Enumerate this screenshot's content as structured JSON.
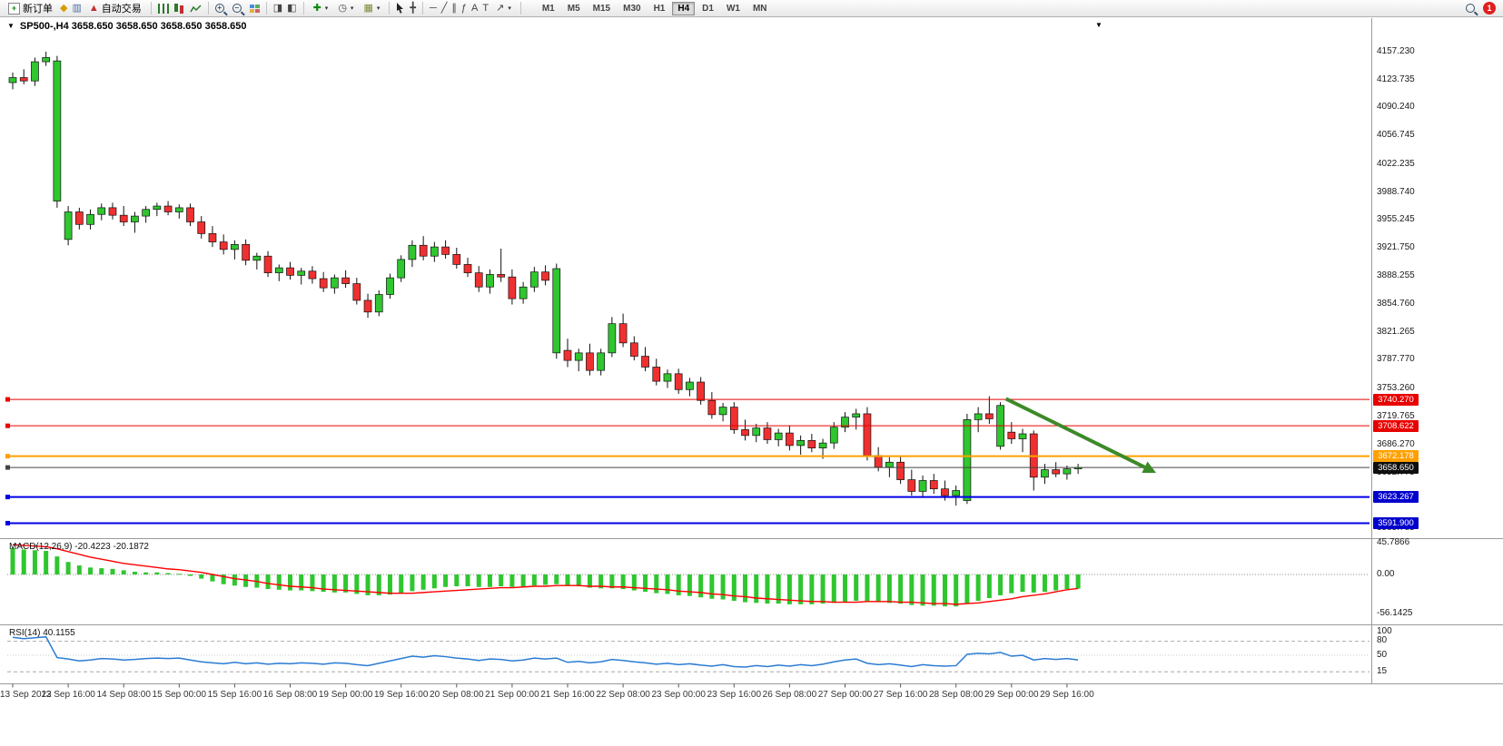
{
  "toolbar": {
    "new_order_label": "新订单",
    "auto_trading_label": "自动交易",
    "timeframes": [
      "M1",
      "M5",
      "M15",
      "M30",
      "H1",
      "H4",
      "D1",
      "W1",
      "MN"
    ],
    "active_timeframe": "H4",
    "notification_count": "1"
  },
  "icons": {
    "window_menu": "▼",
    "shift_marker": "▼",
    "metaeditor": "◆",
    "market_watch": "▥",
    "algo_hat": "▲",
    "auto_scroll": "◨",
    "chart_shift": "◧",
    "indicators_plus": "✚",
    "periods_clock": "◷",
    "templates": "▦",
    "crosshair": "╋",
    "horizontal_line": "─",
    "trendline": "╱",
    "channel": "∥",
    "fibonacci": "ƒ",
    "text_tool": "A",
    "label_tool": "T",
    "arrows_tool": "↗",
    "caret": "▾"
  },
  "chart_header": {
    "symbol_title": "SP500-,H4 3658.650 3658.650 3658.650 3658.650"
  },
  "indicators": {
    "macd_label": "MACD(12,26,9) -20.4223 -20.1872",
    "rsi_label": "RSI(14) 40.1155"
  },
  "price_axis": {
    "labels": [
      "4157.230",
      "4123.735",
      "4090.240",
      "4056.745",
      "4022.235",
      "3988.740",
      "3955.245",
      "3921.750",
      "3888.255",
      "3854.760",
      "3821.265",
      "3787.770",
      "3753.260",
      "3719.765",
      "3686.270",
      "3652.775",
      "3619.280",
      "3585.785"
    ]
  },
  "macd_axis": {
    "labels": [
      "45.7866",
      "0.00",
      "-56.1425"
    ]
  },
  "rsi_axis": {
    "labels": [
      "100",
      "80",
      "50",
      "15"
    ]
  },
  "time_axis": {
    "labels": [
      "13 Sep 2022",
      "13 Sep 16:00",
      "14 Sep 08:00",
      "15 Sep 00:00",
      "15 Sep 16:00",
      "16 Sep 08:00",
      "19 Sep 00:00",
      "19 Sep 16:00",
      "20 Sep 08:00",
      "21 Sep 00:00",
      "21 Sep 16:00",
      "22 Sep 08:00",
      "23 Sep 00:00",
      "23 Sep 16:00",
      "26 Sep 08:00",
      "27 Sep 00:00",
      "27 Sep 16:00",
      "28 Sep 08:00",
      "29 Sep 00:00",
      "29 Sep 16:00"
    ]
  },
  "levels": [
    {
      "value": 3740.27,
      "label": "3740.270",
      "line_color": "#e80000",
      "tag_color": "#e80000",
      "width": 1
    },
    {
      "value": 3708.622,
      "label": "3708.622",
      "line_color": "#e80000",
      "tag_color": "#e80000",
      "width": 1
    },
    {
      "value": 3672.178,
      "label": "3672.178",
      "line_color": "#ffa000",
      "tag_color": "#ffa000",
      "width": 2
    },
    {
      "value": 3658.65,
      "label": "3658.650",
      "line_color": "#444444",
      "tag_color": "#101010",
      "width": 1
    },
    {
      "value": 3623.267,
      "label": "3623.267",
      "line_color": "#0000e8",
      "tag_color": "#0000cd",
      "width": 2
    },
    {
      "value": 3591.9,
      "label": "3591.900",
      "line_color": "#0000e8",
      "tag_color": "#0000cd",
      "width": 2
    }
  ],
  "colors": {
    "bull": "#2fc62f",
    "bear": "#f03030",
    "wick": "#111111",
    "macd_hist": "#2fc62f",
    "macd_signal": "#ff0000",
    "rsi_line": "#2b7cd4",
    "arrow": "#3c8a28"
  },
  "chart_data": {
    "type": "candlestick",
    "symbol": "SP500-",
    "timeframe": "H4",
    "title": "SP500-,H4",
    "last_price": 3658.65,
    "price_range": {
      "top": 4175.5,
      "bottom": 3575.0
    },
    "candles": [
      [
        4120,
        4132,
        4112,
        4126
      ],
      [
        4126,
        4136,
        4118,
        4122
      ],
      [
        4122,
        4150,
        4116,
        4145
      ],
      [
        4145,
        4157,
        4140,
        4150
      ],
      [
        3978,
        4152,
        3970,
        4146
      ],
      [
        3932,
        3972,
        3925,
        3965
      ],
      [
        3965,
        3970,
        3944,
        3950
      ],
      [
        3950,
        3968,
        3944,
        3962
      ],
      [
        3962,
        3975,
        3955,
        3970
      ],
      [
        3970,
        3976,
        3956,
        3961
      ],
      [
        3961,
        3972,
        3948,
        3953
      ],
      [
        3953,
        3965,
        3940,
        3960
      ],
      [
        3960,
        3972,
        3952,
        3968
      ],
      [
        3968,
        3976,
        3960,
        3972
      ],
      [
        3972,
        3978,
        3961,
        3965
      ],
      [
        3965,
        3974,
        3957,
        3970
      ],
      [
        3970,
        3975,
        3948,
        3953
      ],
      [
        3953,
        3960,
        3933,
        3939
      ],
      [
        3939,
        3948,
        3923,
        3929
      ],
      [
        3929,
        3938,
        3914,
        3920
      ],
      [
        3920,
        3931,
        3908,
        3926
      ],
      [
        3926,
        3932,
        3901,
        3907
      ],
      [
        3907,
        3916,
        3896,
        3912
      ],
      [
        3912,
        3918,
        3887,
        3892
      ],
      [
        3892,
        3902,
        3882,
        3898
      ],
      [
        3898,
        3905,
        3884,
        3889
      ],
      [
        3889,
        3898,
        3878,
        3894
      ],
      [
        3894,
        3900,
        3879,
        3885
      ],
      [
        3885,
        3893,
        3869,
        3874
      ],
      [
        3874,
        3890,
        3867,
        3886
      ],
      [
        3886,
        3895,
        3874,
        3879
      ],
      [
        3879,
        3886,
        3854,
        3859
      ],
      [
        3859,
        3867,
        3838,
        3845
      ],
      [
        3845,
        3871,
        3840,
        3866
      ],
      [
        3866,
        3891,
        3861,
        3886
      ],
      [
        3886,
        3913,
        3881,
        3908
      ],
      [
        3908,
        3931,
        3899,
        3925
      ],
      [
        3925,
        3936,
        3907,
        3912
      ],
      [
        3912,
        3929,
        3905,
        3923
      ],
      [
        3923,
        3931,
        3909,
        3914
      ],
      [
        3914,
        3922,
        3897,
        3902
      ],
      [
        3902,
        3910,
        3887,
        3892
      ],
      [
        3892,
        3900,
        3869,
        3875
      ],
      [
        3875,
        3896,
        3867,
        3890
      ],
      [
        3890,
        3921,
        3881,
        3887
      ],
      [
        3887,
        3896,
        3854,
        3861
      ],
      [
        3861,
        3881,
        3855,
        3875
      ],
      [
        3875,
        3899,
        3869,
        3893
      ],
      [
        3893,
        3901,
        3877,
        3883
      ],
      [
        3796,
        3903,
        3789,
        3897
      ],
      [
        3799,
        3813,
        3779,
        3787
      ],
      [
        3787,
        3801,
        3774,
        3796
      ],
      [
        3796,
        3807,
        3769,
        3775
      ],
      [
        3775,
        3801,
        3769,
        3796
      ],
      [
        3796,
        3839,
        3791,
        3831
      ],
      [
        3831,
        3843,
        3803,
        3808
      ],
      [
        3808,
        3816,
        3787,
        3792
      ],
      [
        3792,
        3803,
        3774,
        3779
      ],
      [
        3779,
        3789,
        3757,
        3762
      ],
      [
        3762,
        3776,
        3754,
        3771
      ],
      [
        3771,
        3777,
        3747,
        3752
      ],
      [
        3752,
        3766,
        3744,
        3761
      ],
      [
        3761,
        3767,
        3734,
        3739
      ],
      [
        3739,
        3749,
        3717,
        3722
      ],
      [
        3722,
        3736,
        3714,
        3731
      ],
      [
        3731,
        3737,
        3699,
        3704
      ],
      [
        3704,
        3716,
        3691,
        3697
      ],
      [
        3697,
        3711,
        3689,
        3706
      ],
      [
        3706,
        3713,
        3687,
        3692
      ],
      [
        3692,
        3705,
        3684,
        3700
      ],
      [
        3700,
        3709,
        3679,
        3685
      ],
      [
        3685,
        3697,
        3674,
        3691
      ],
      [
        3691,
        3699,
        3677,
        3682
      ],
      [
        3682,
        3693,
        3669,
        3688
      ],
      [
        3688,
        3713,
        3681,
        3707
      ],
      [
        3707,
        3725,
        3701,
        3719
      ],
      [
        3719,
        3729,
        3704,
        3723
      ],
      [
        3723,
        3731,
        3667,
        3673
      ],
      [
        3673,
        3683,
        3654,
        3659
      ],
      [
        3659,
        3671,
        3647,
        3665
      ],
      [
        3665,
        3673,
        3639,
        3644
      ],
      [
        3644,
        3656,
        3625,
        3630
      ],
      [
        3630,
        3649,
        3623,
        3643
      ],
      [
        3643,
        3651,
        3627,
        3633
      ],
      [
        3633,
        3643,
        3619,
        3625
      ],
      [
        3625,
        3637,
        3613,
        3631
      ],
      [
        3619,
        3723,
        3615,
        3716
      ],
      [
        3716,
        3731,
        3701,
        3723
      ],
      [
        3723,
        3744,
        3711,
        3717
      ],
      [
        3684,
        3737,
        3680,
        3733
      ],
      [
        3701,
        3713,
        3687,
        3693
      ],
      [
        3693,
        3705,
        3677,
        3699
      ],
      [
        3699,
        3703,
        3631,
        3647
      ],
      [
        3647,
        3663,
        3639,
        3656
      ],
      [
        3656,
        3665,
        3647,
        3651
      ],
      [
        3651,
        3661,
        3644,
        3657
      ],
      [
        3657,
        3663,
        3651,
        3658.65
      ]
    ],
    "macd": {
      "params": "12,26,9",
      "last_main": -20.4223,
      "last_signal": -20.1872,
      "range": {
        "top": 45.7866,
        "zero": 0,
        "bottom": -56.1425
      },
      "histogram": [
        38,
        36,
        35,
        34,
        26,
        18,
        13,
        10,
        9,
        8,
        6,
        4,
        3,
        3,
        2,
        1,
        -2,
        -6,
        -10,
        -14,
        -16,
        -18,
        -19,
        -21,
        -22,
        -23,
        -23,
        -24,
        -25,
        -26,
        -26,
        -28,
        -30,
        -30,
        -29,
        -27,
        -24,
        -22,
        -20,
        -18,
        -17,
        -17,
        -18,
        -18,
        -17,
        -18,
        -17,
        -16,
        -15,
        -14,
        -16,
        -17,
        -19,
        -20,
        -20,
        -21,
        -23,
        -25,
        -27,
        -28,
        -30,
        -31,
        -33,
        -35,
        -36,
        -38,
        -40,
        -41,
        -42,
        -42,
        -43,
        -43,
        -43,
        -42,
        -41,
        -40,
        -38,
        -39,
        -40,
        -41,
        -42,
        -44,
        -45,
        -45,
        -46,
        -46,
        -42,
        -38,
        -34,
        -30,
        -27,
        -25,
        -26,
        -25,
        -23,
        -21,
        -20.42
      ],
      "signal": [
        43,
        42,
        41,
        40,
        37,
        33,
        29,
        25,
        22,
        19,
        16,
        14,
        12,
        10,
        8,
        7,
        5,
        3,
        0,
        -3,
        -6,
        -8,
        -10,
        -13,
        -15,
        -17,
        -18,
        -19,
        -21,
        -22,
        -23,
        -24,
        -25,
        -26,
        -27,
        -27,
        -27,
        -26,
        -25,
        -24,
        -23,
        -22,
        -21,
        -20,
        -19,
        -19,
        -18,
        -17,
        -17,
        -16,
        -16,
        -16,
        -17,
        -17,
        -18,
        -18,
        -19,
        -20,
        -21,
        -22,
        -24,
        -25,
        -26,
        -28,
        -29,
        -31,
        -32,
        -34,
        -35,
        -36,
        -37,
        -38,
        -39,
        -39,
        -40,
        -40,
        -40,
        -39,
        -39,
        -39,
        -40,
        -40,
        -41,
        -42,
        -42,
        -43,
        -42,
        -41,
        -39,
        -37,
        -35,
        -32,
        -30,
        -28,
        -25,
        -22,
        -20.19
      ]
    },
    "rsi": {
      "period": 14,
      "last": 40.1155,
      "levels": [
        80,
        50,
        15
      ],
      "values": [
        88,
        85,
        87,
        89,
        45,
        42,
        38,
        40,
        43,
        42,
        40,
        41,
        43,
        44,
        43,
        44,
        40,
        36,
        34,
        32,
        35,
        32,
        34,
        31,
        33,
        32,
        34,
        33,
        31,
        34,
        33,
        30,
        28,
        33,
        38,
        43,
        48,
        46,
        49,
        47,
        44,
        42,
        39,
        42,
        41,
        38,
        40,
        44,
        42,
        44,
        35,
        37,
        34,
        36,
        41,
        39,
        36,
        34,
        31,
        33,
        30,
        32,
        29,
        27,
        30,
        26,
        25,
        28,
        26,
        29,
        27,
        30,
        28,
        31,
        36,
        40,
        42,
        33,
        30,
        32,
        29,
        26,
        30,
        28,
        27,
        28,
        52,
        54,
        53,
        56,
        48,
        50,
        40,
        43,
        41,
        43,
        40.12
      ]
    },
    "annotation_arrow": {
      "color": "#3c8a28",
      "from": {
        "index": 89.5,
        "price": 3741
      },
      "to": {
        "index": 102,
        "price": 3659
      }
    }
  }
}
